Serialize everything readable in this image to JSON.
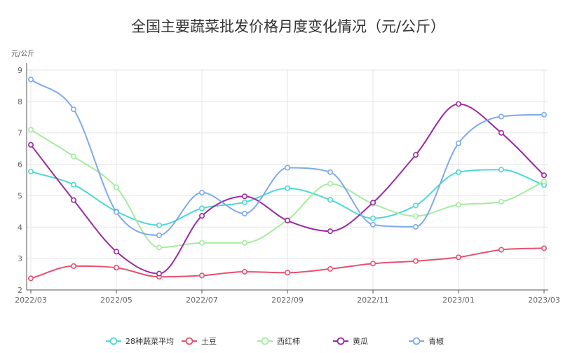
{
  "chart_data": {
    "type": "line",
    "title": "全国主要蔬菜批发价格月度变化情况（元/公斤）",
    "ylabel": "元/公斤",
    "xlabel": "",
    "ylim": [
      2,
      9
    ],
    "y_ticks": [
      2,
      3,
      4,
      5,
      6,
      7,
      8,
      9
    ],
    "x": [
      "2022/03",
      "2022/04",
      "2022/05",
      "2022/06",
      "2022/07",
      "2022/08",
      "2022/09",
      "2022/10",
      "2022/11",
      "2022/12",
      "2023/01",
      "2023/02",
      "2023/03"
    ],
    "x_tick_labels": [
      "2022/03",
      "2022/05",
      "2022/07",
      "2022/09",
      "2022/11",
      "2023/01",
      "2023/03"
    ],
    "smooth": true,
    "grid": {
      "horizontal": true,
      "vertical": true
    },
    "legend_position": "bottom",
    "series": [
      {
        "name": "28种蔬菜平均",
        "color": "#4dd8d1",
        "values": [
          5.77,
          5.35,
          4.5,
          4.06,
          4.6,
          4.79,
          5.24,
          4.87,
          4.28,
          4.69,
          5.75,
          5.83,
          5.34
        ]
      },
      {
        "name": "土豆",
        "color": "#e8506e",
        "values": [
          2.37,
          2.76,
          2.71,
          2.42,
          2.46,
          2.58,
          2.55,
          2.67,
          2.84,
          2.92,
          3.04,
          3.28,
          3.33
        ]
      },
      {
        "name": "西红柿",
        "color": "#a5eb9e",
        "values": [
          7.1,
          6.25,
          5.27,
          3.35,
          3.5,
          3.5,
          4.23,
          5.38,
          4.74,
          4.35,
          4.71,
          4.81,
          5.45
        ]
      },
      {
        "name": "黄瓜",
        "color": "#9a2aa0",
        "values": [
          6.62,
          4.86,
          3.22,
          2.52,
          4.36,
          4.98,
          4.21,
          3.87,
          4.78,
          6.3,
          7.92,
          7.0,
          5.65
        ]
      },
      {
        "name": "青椒",
        "color": "#7ea9ef",
        "values": [
          8.7,
          7.75,
          4.48,
          3.74,
          5.1,
          4.43,
          5.89,
          5.75,
          4.08,
          4.01,
          6.67,
          7.52,
          7.58
        ]
      }
    ]
  }
}
